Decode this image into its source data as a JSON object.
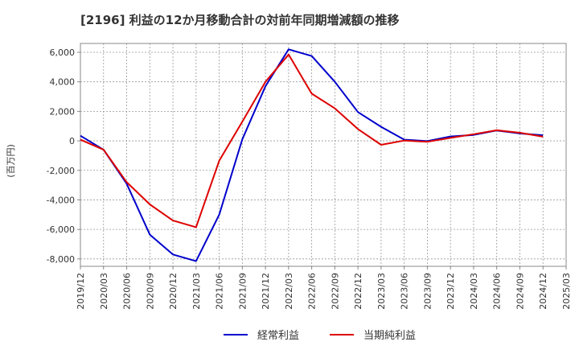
{
  "chart_data": {
    "type": "line",
    "title": "[2196]  利益の12か月移動合計の対前年同期増減額の推移",
    "ylabel": "(百万円)",
    "xlabel": "",
    "ylim": [
      -8500,
      6600
    ],
    "yticks": [
      -8000,
      -6000,
      -4000,
      -2000,
      0,
      2000,
      4000,
      6000
    ],
    "ytick_labels": [
      "-8,000",
      "-6,000",
      "-4,000",
      "-2,000",
      "0",
      "2,000",
      "4,000",
      "6,000"
    ],
    "xticks": [
      "2019/12",
      "2020/03",
      "2020/06",
      "2020/09",
      "2020/12",
      "2021/03",
      "2021/06",
      "2021/09",
      "2021/12",
      "2022/03",
      "2022/06",
      "2022/09",
      "2022/12",
      "2023/03",
      "2023/06",
      "2023/09",
      "2023/12",
      "2024/03",
      "2024/06",
      "2024/09",
      "2024/12",
      "2025/03"
    ],
    "grid": true,
    "legend_position": "bottom-center",
    "series": [
      {
        "name": "経常利益",
        "color": "#0000cc",
        "values": [
          350,
          -600,
          -2900,
          -6350,
          -7700,
          -8150,
          -5000,
          100,
          3700,
          6200,
          5750,
          4000,
          1950,
          950,
          80,
          -20,
          300,
          400,
          700,
          500,
          380
        ]
      },
      {
        "name": "当期純利益",
        "color": "#dd0000",
        "values": [
          80,
          -600,
          -2800,
          -4300,
          -5400,
          -5850,
          -1350,
          1300,
          4000,
          5850,
          3200,
          2200,
          800,
          -270,
          20,
          -60,
          200,
          450,
          720,
          550,
          280
        ]
      }
    ]
  }
}
